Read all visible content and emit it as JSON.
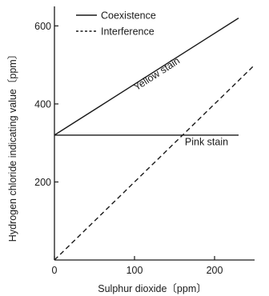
{
  "chart_data": {
    "type": "line",
    "xlabel": "Sulphur dioxide〔ppm〕",
    "ylabel": "Hydrogen chloride indicating value〔ppm〕",
    "xlim": [
      0,
      250
    ],
    "ylim": [
      0,
      650
    ],
    "x_ticks": [
      0,
      100,
      200
    ],
    "x_tick_labels": [
      "0",
      "100",
      "200"
    ],
    "y_ticks": [
      200,
      400,
      600
    ],
    "y_tick_labels": [
      "200",
      "400",
      "600"
    ],
    "grid": false,
    "legend_position": "top-left",
    "legend": [
      {
        "label": "Coexistence",
        "style": "solid"
      },
      {
        "label": "Interference",
        "style": "dashed"
      }
    ],
    "series": [
      {
        "style": "solid",
        "x": [
          0,
          230
        ],
        "y": [
          320,
          620
        ]
      },
      {
        "style": "solid",
        "x": [
          0,
          230
        ],
        "y": [
          320,
          320
        ]
      },
      {
        "style": "dashed",
        "x": [
          0,
          250
        ],
        "y": [
          0,
          500
        ]
      }
    ],
    "annotations": [
      {
        "text": "Yellow stain",
        "x": 130,
        "y": 470,
        "rotation": -33
      },
      {
        "text": "Pink stain",
        "x": 190,
        "y": 294
      }
    ],
    "colors": {
      "line": "#1a1a1a",
      "axis": "#1a1a1a"
    }
  }
}
